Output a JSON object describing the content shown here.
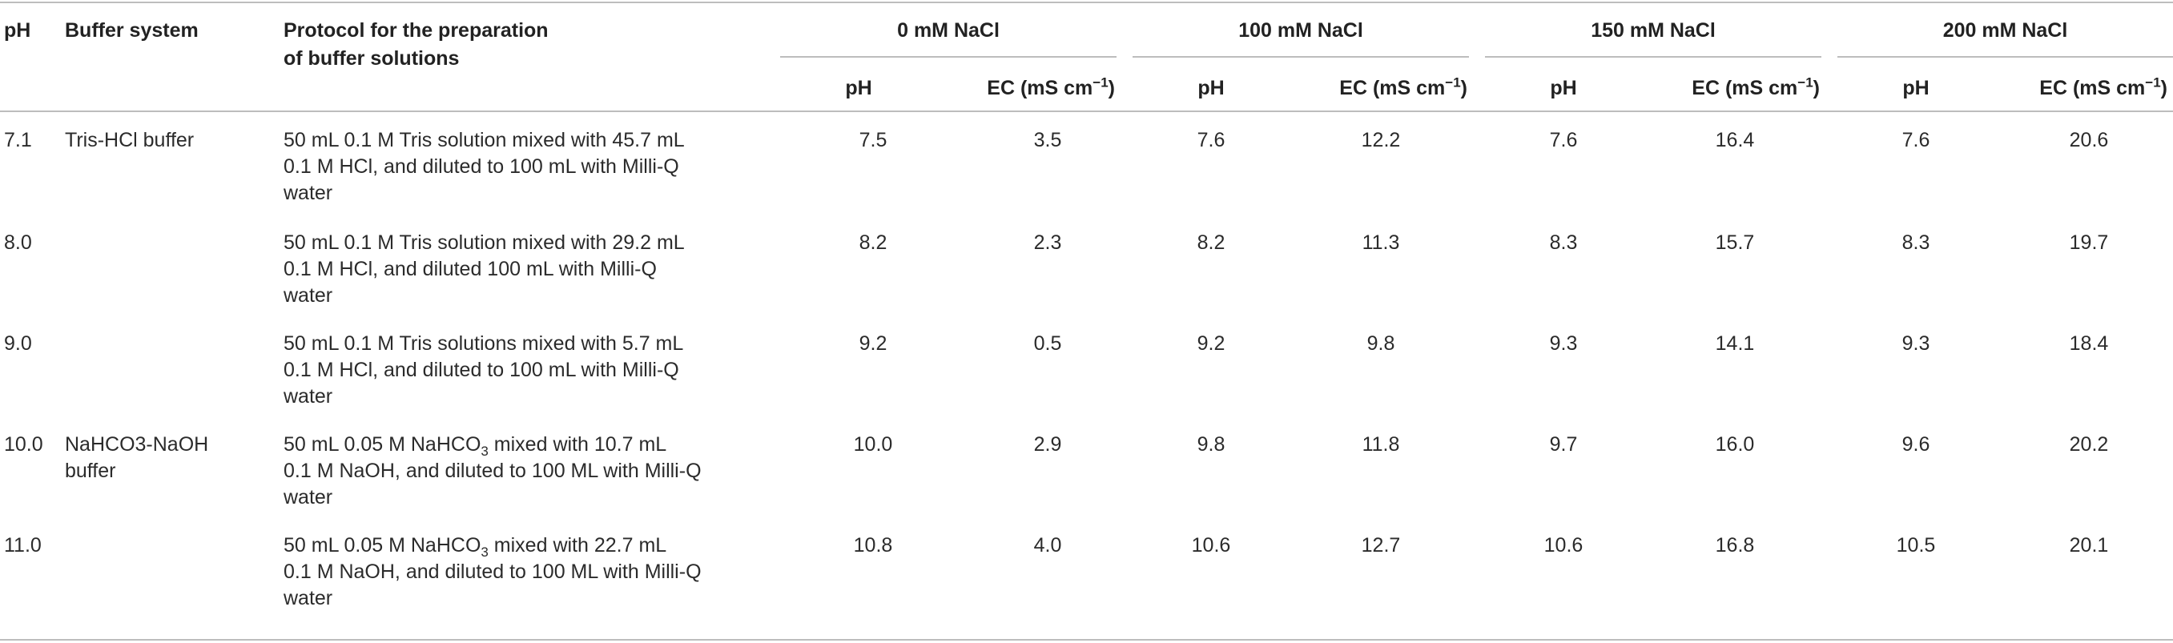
{
  "header": {
    "ph": "pH",
    "buffer": "Buffer system",
    "protocol_line1": "Protocol for the preparation",
    "protocol_line2": "of buffer solutions",
    "groups": [
      "0 mM NaCl",
      "100 mM NaCl",
      "150 mM NaCl",
      "200 mM NaCl"
    ],
    "sub_ph": "pH",
    "sub_ec_prefix": "EC (mS cm",
    "sub_ec_exp": "−1",
    "sub_ec_suffix": ")"
  },
  "rows": [
    {
      "ph": "7.1",
      "buffer_lines": [
        "Tris-HCl buffer"
      ],
      "protocol_lines": [
        {
          "a": "50 mL 0.1 M Tris solution mixed with 45.7 mL",
          "sub": "",
          "b": ""
        },
        {
          "a": "0.1 M HCl, and diluted to 100 mL with Milli-Q",
          "sub": "",
          "b": ""
        },
        {
          "a": "water",
          "sub": "",
          "b": ""
        }
      ],
      "values": [
        "7.5",
        "3.5",
        "7.6",
        "12.2",
        "7.6",
        "16.4",
        "7.6",
        "20.6"
      ]
    },
    {
      "ph": "8.0",
      "buffer_lines": [],
      "protocol_lines": [
        {
          "a": "50 mL 0.1 M Tris solution mixed with 29.2 mL",
          "sub": "",
          "b": ""
        },
        {
          "a": "0.1 M HCl, and diluted 100 mL with Milli-Q",
          "sub": "",
          "b": ""
        },
        {
          "a": "water",
          "sub": "",
          "b": ""
        }
      ],
      "values": [
        "8.2",
        "2.3",
        "8.2",
        "11.3",
        "8.3",
        "15.7",
        "8.3",
        "19.7"
      ]
    },
    {
      "ph": "9.0",
      "buffer_lines": [],
      "protocol_lines": [
        {
          "a": "50 mL 0.1 M Tris solutions mixed with 5.7 mL",
          "sub": "",
          "b": ""
        },
        {
          "a": "0.1 M HCl, and diluted to 100 mL with Milli-Q",
          "sub": "",
          "b": ""
        },
        {
          "a": "water",
          "sub": "",
          "b": ""
        }
      ],
      "values": [
        "9.2",
        "0.5",
        "9.2",
        "9.8",
        "9.3",
        "14.1",
        "9.3",
        "18.4"
      ]
    },
    {
      "ph": "10.0",
      "buffer_lines": [
        "NaHCO3-NaOH",
        "buffer"
      ],
      "protocol_lines": [
        {
          "a": "50 mL 0.05 M NaHCO",
          "sub": "3",
          "b": " mixed with 10.7 mL"
        },
        {
          "a": "0.1 M NaOH, and diluted to 100 ML with Milli-Q",
          "sub": "",
          "b": ""
        },
        {
          "a": "water",
          "sub": "",
          "b": ""
        }
      ],
      "values": [
        "10.0",
        "2.9",
        "9.8",
        "11.8",
        "9.7",
        "16.0",
        "9.6",
        "20.2"
      ]
    },
    {
      "ph": "11.0",
      "buffer_lines": [],
      "protocol_lines": [
        {
          "a": "50 mL 0.05 M NaHCO",
          "sub": "3",
          "b": " mixed with 22.7 mL"
        },
        {
          "a": "0.1 M NaOH, and diluted to 100 ML with Milli-Q",
          "sub": "",
          "b": ""
        },
        {
          "a": "water",
          "sub": "",
          "b": ""
        }
      ],
      "values": [
        "10.8",
        "4.0",
        "10.6",
        "12.7",
        "10.6",
        "16.8",
        "10.5",
        "20.1"
      ]
    }
  ]
}
